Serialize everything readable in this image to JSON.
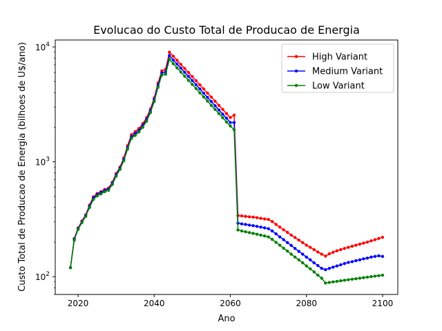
{
  "chart_data": {
    "type": "line",
    "title": "Evolucao do Custo Total de Producao de Energia",
    "xlabel": "Ano",
    "ylabel": "Custo Total de Producao de Energia (bilhoes de U$/ano)",
    "yscale": "log",
    "xlim": [
      2014,
      2104
    ],
    "ylim": [
      70,
      11500
    ],
    "xticks": [
      2020,
      2040,
      2060,
      2080,
      2100
    ],
    "yticks": [
      {
        "value": 100,
        "base": "10",
        "exp": "2"
      },
      {
        "value": 1000,
        "base": "10",
        "exp": "3"
      },
      {
        "value": 10000,
        "base": "10",
        "exp": "4"
      }
    ],
    "grid": false,
    "legend_position": "top-right",
    "x": [
      2018,
      2019,
      2020,
      2021,
      2022,
      2023,
      2024,
      2025,
      2026,
      2027,
      2028,
      2029,
      2030,
      2031,
      2032,
      2033,
      2034,
      2035,
      2036,
      2037,
      2038,
      2039,
      2040,
      2041,
      2042,
      2043,
      2044,
      2045,
      2046,
      2047,
      2048,
      2049,
      2050,
      2051,
      2052,
      2053,
      2054,
      2055,
      2056,
      2057,
      2058,
      2059,
      2060,
      2061,
      2062,
      2063,
      2064,
      2065,
      2066,
      2067,
      2068,
      2069,
      2070,
      2071,
      2072,
      2073,
      2074,
      2075,
      2076,
      2077,
      2078,
      2079,
      2080,
      2081,
      2082,
      2083,
      2084,
      2085,
      2086,
      2087,
      2088,
      2089,
      2090,
      2091,
      2092,
      2093,
      2094,
      2095,
      2096,
      2097,
      2098,
      2099,
      2100
    ],
    "series": [
      {
        "name": "High Variant",
        "color": "#ff0000",
        "values": [
          120,
          215,
          265,
          305,
          345,
          420,
          495,
          530,
          550,
          575,
          590,
          665,
          790,
          900,
          1080,
          1380,
          1720,
          1830,
          1950,
          2150,
          2420,
          2880,
          3600,
          4850,
          6200,
          6380,
          9000,
          8300,
          7650,
          7050,
          6500,
          6000,
          5520,
          5080,
          4680,
          4310,
          3970,
          3660,
          3370,
          3100,
          2860,
          2630,
          2430,
          2550,
          340,
          338,
          335,
          332,
          330,
          326,
          322,
          318,
          315,
          302,
          285,
          270,
          256,
          243,
          230,
          219,
          208,
          198,
          188,
          180,
          172,
          164,
          157,
          151,
          158,
          163,
          168,
          172,
          176,
          180,
          184,
          188,
          192,
          196,
          200,
          205,
          210,
          215,
          220
        ]
      },
      {
        "name": "Medium Variant",
        "color": "#0000ff",
        "values": [
          120,
          212,
          262,
          300,
          340,
          410,
          485,
          520,
          540,
          565,
          580,
          650,
          770,
          880,
          1050,
          1330,
          1650,
          1760,
          1880,
          2080,
          2340,
          2780,
          3480,
          4650,
          5950,
          6050,
          8400,
          7700,
          7100,
          6540,
          6020,
          5550,
          5100,
          4690,
          4310,
          3960,
          3640,
          3350,
          3080,
          2830,
          2600,
          2400,
          2200,
          2200,
          292,
          288,
          285,
          281,
          278,
          274,
          270,
          266,
          262,
          250,
          236,
          222,
          210,
          198,
          187,
          176,
          166,
          157,
          148,
          140,
          132,
          125,
          118,
          115,
          118,
          121,
          124,
          127,
          130,
          133,
          135,
          138,
          140,
          143,
          145,
          148,
          150,
          152,
          150
        ]
      },
      {
        "name": "Low Variant",
        "color": "#008000",
        "values": [
          120,
          208,
          258,
          295,
          335,
          400,
          470,
          505,
          525,
          550,
          565,
          635,
          750,
          860,
          1020,
          1290,
          1600,
          1700,
          1820,
          2000,
          2260,
          2680,
          3350,
          4450,
          5700,
          5800,
          7800,
          7150,
          6580,
          6050,
          5570,
          5130,
          4720,
          4340,
          3990,
          3670,
          3380,
          3100,
          2860,
          2630,
          2420,
          2220,
          2050,
          1900,
          255,
          250,
          246,
          242,
          238,
          234,
          230,
          226,
          222,
          211,
          199,
          188,
          177,
          167,
          157,
          148,
          140,
          132,
          124,
          117,
          110,
          103,
          97,
          88,
          89,
          90,
          91,
          92,
          93,
          94,
          95,
          96,
          97,
          98,
          99,
          100,
          101,
          102,
          103
        ]
      }
    ]
  }
}
